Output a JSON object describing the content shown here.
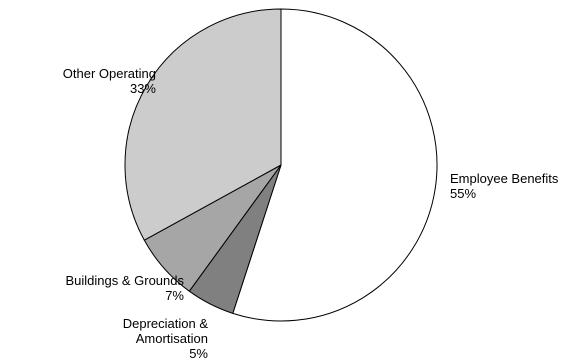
{
  "chart_data": {
    "type": "pie",
    "title": "",
    "legend": "none",
    "slices": [
      {
        "label": "Employee Benefits",
        "value": 55,
        "value_label": "55%",
        "color": "#ffffff"
      },
      {
        "label": "Depreciation & Amortisation",
        "value": 5,
        "value_label": "5%",
        "color": "#808080"
      },
      {
        "label": "Buildings & Grounds",
        "value": 7,
        "value_label": "7%",
        "color": "#a6a6a6"
      },
      {
        "label": "Other Operating",
        "value": 33,
        "value_label": "33%",
        "color": "#cccccc"
      }
    ]
  }
}
